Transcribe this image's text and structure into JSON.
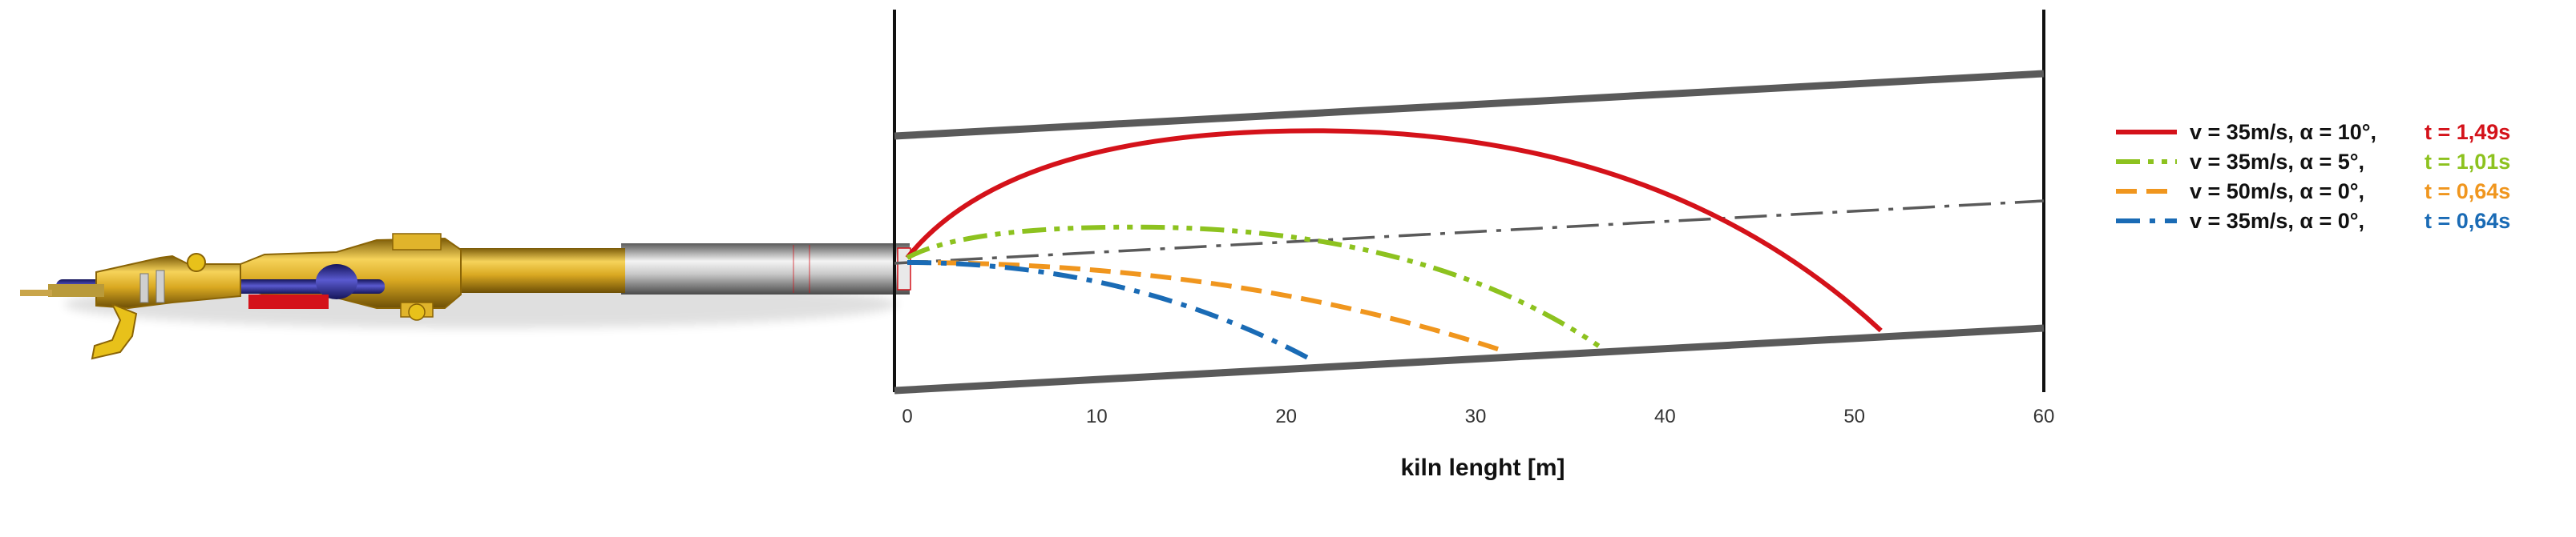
{
  "chart_data": {
    "type": "line",
    "title": "",
    "xlabel": "kiln lenght [m]",
    "ylabel": "",
    "xlim": [
      0,
      60
    ],
    "x_ticks": [
      0,
      10,
      20,
      30,
      40,
      50,
      60
    ],
    "x_tick_labels": [
      "0",
      "10",
      "20",
      "30",
      "40",
      "50",
      "60"
    ],
    "legend_position": "right",
    "grid": false,
    "kiln_axis_note": "",
    "series": [
      {
        "name": "v = 35m/s, α = 10°,",
        "time": "t = 1,49s",
        "color": "#d4121a",
        "dash": "solid",
        "range_m": 51.4,
        "apex_m": 21.5,
        "rise": 0.58,
        "drop": 0.35
      },
      {
        "name": "v = 35m/s, α = 5°,",
        "time": "t = 1,01s",
        "color": "#8dc21f",
        "dash": "dash-dot-dot",
        "range_m": 36.5,
        "apex_m": 12.0,
        "rise": 0.14,
        "drop": 0.43
      },
      {
        "name": "v = 50m/s, α = 0°,",
        "time": "t = 0,64s",
        "color": "#f0961e",
        "dash": "dashed",
        "range_m": 31.5,
        "apex_m": 0,
        "rise": 0,
        "drop": 0.42
      },
      {
        "name": "v = 35m/s, α = 0°,",
        "time": "t = 0,64s",
        "color": "#1a6bb5",
        "dash": "dash-dot",
        "range_m": 21.5,
        "apex_m": 0,
        "rise": 0,
        "drop": 0.42
      }
    ]
  },
  "burner": {
    "colors": {
      "gold": "#d9a821",
      "dark_gold": "#a87a0e",
      "steel": "#9a9a9a",
      "blue": "#2a2a8a",
      "red": "#d4121a"
    }
  }
}
